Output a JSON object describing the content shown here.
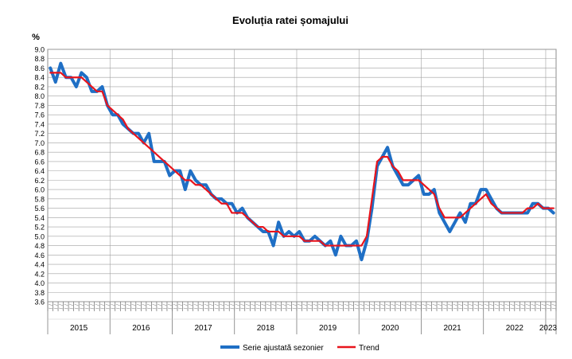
{
  "chart_data": {
    "type": "line",
    "title": "Evoluția ratei șomajului",
    "ylabel": "%",
    "xlabel": "",
    "ylim": [
      3.6,
      9.0
    ],
    "y_ticks": [
      "9.0",
      "8.8",
      "8.6",
      "8.4",
      "8.2",
      "8.0",
      "7.8",
      "7.6",
      "7.4",
      "7.2",
      "7.0",
      "6.8",
      "6.6",
      "6.4",
      "6.2",
      "6.0",
      "5.8",
      "5.6",
      "5.4",
      "5.2",
      "5.0",
      "4.8",
      "4.6",
      "4.4",
      "4.2",
      "4.0",
      "3.8",
      "3.6"
    ],
    "grid": true,
    "legend_position": "bottom-center",
    "x_start": "2015-01",
    "year_labels": [
      "2015",
      "2016",
      "2017",
      "2018",
      "2019",
      "2020",
      "2021",
      "2022",
      "2023"
    ],
    "series": [
      {
        "name": "Serie ajustată sezonier",
        "color": "#1f6fc5",
        "values": [
          8.6,
          8.3,
          8.7,
          8.4,
          8.4,
          8.2,
          8.5,
          8.4,
          8.1,
          8.1,
          8.2,
          7.8,
          7.6,
          7.6,
          7.4,
          7.3,
          7.2,
          7.2,
          7.0,
          7.2,
          6.6,
          6.6,
          6.6,
          6.3,
          6.4,
          6.4,
          6.0,
          6.4,
          6.2,
          6.1,
          6.1,
          5.9,
          5.8,
          5.8,
          5.7,
          5.7,
          5.5,
          5.6,
          5.4,
          5.3,
          5.2,
          5.1,
          5.1,
          4.8,
          5.3,
          5.0,
          5.1,
          5.0,
          5.1,
          4.9,
          4.9,
          5.0,
          4.9,
          4.8,
          4.9,
          4.6,
          5.0,
          4.8,
          4.8,
          4.9,
          4.5,
          4.9,
          5.6,
          6.5,
          6.7,
          6.9,
          6.5,
          6.3,
          6.1,
          6.1,
          6.2,
          6.3,
          5.9,
          5.9,
          6.0,
          5.5,
          5.3,
          5.1,
          5.3,
          5.5,
          5.3,
          5.7,
          5.7,
          6.0,
          6.0,
          5.8,
          5.6,
          5.5,
          5.5,
          5.5,
          5.5,
          5.5,
          5.5,
          5.7,
          5.7,
          5.6,
          5.6,
          5.5
        ]
      },
      {
        "name": "Trend",
        "color": "#e8141c",
        "values": [
          8.5,
          8.5,
          8.5,
          8.4,
          8.4,
          8.4,
          8.4,
          8.3,
          8.2,
          8.1,
          8.1,
          7.8,
          7.7,
          7.6,
          7.5,
          7.3,
          7.2,
          7.1,
          7.0,
          6.9,
          6.8,
          6.7,
          6.6,
          6.5,
          6.4,
          6.3,
          6.2,
          6.2,
          6.1,
          6.1,
          6.0,
          5.9,
          5.8,
          5.7,
          5.7,
          5.5,
          5.5,
          5.5,
          5.4,
          5.3,
          5.2,
          5.2,
          5.1,
          5.1,
          5.1,
          5.0,
          5.0,
          5.0,
          5.0,
          4.9,
          4.9,
          4.9,
          4.9,
          4.8,
          4.8,
          4.8,
          4.8,
          4.8,
          4.8,
          4.8,
          4.8,
          5.0,
          5.8,
          6.6,
          6.7,
          6.7,
          6.5,
          6.4,
          6.2,
          6.2,
          6.2,
          6.2,
          6.1,
          6.0,
          5.9,
          5.6,
          5.4,
          5.4,
          5.4,
          5.4,
          5.5,
          5.6,
          5.7,
          5.8,
          5.9,
          5.7,
          5.6,
          5.5,
          5.5,
          5.5,
          5.5,
          5.5,
          5.6,
          5.6,
          5.7,
          5.6,
          5.6,
          5.6
        ]
      }
    ]
  }
}
